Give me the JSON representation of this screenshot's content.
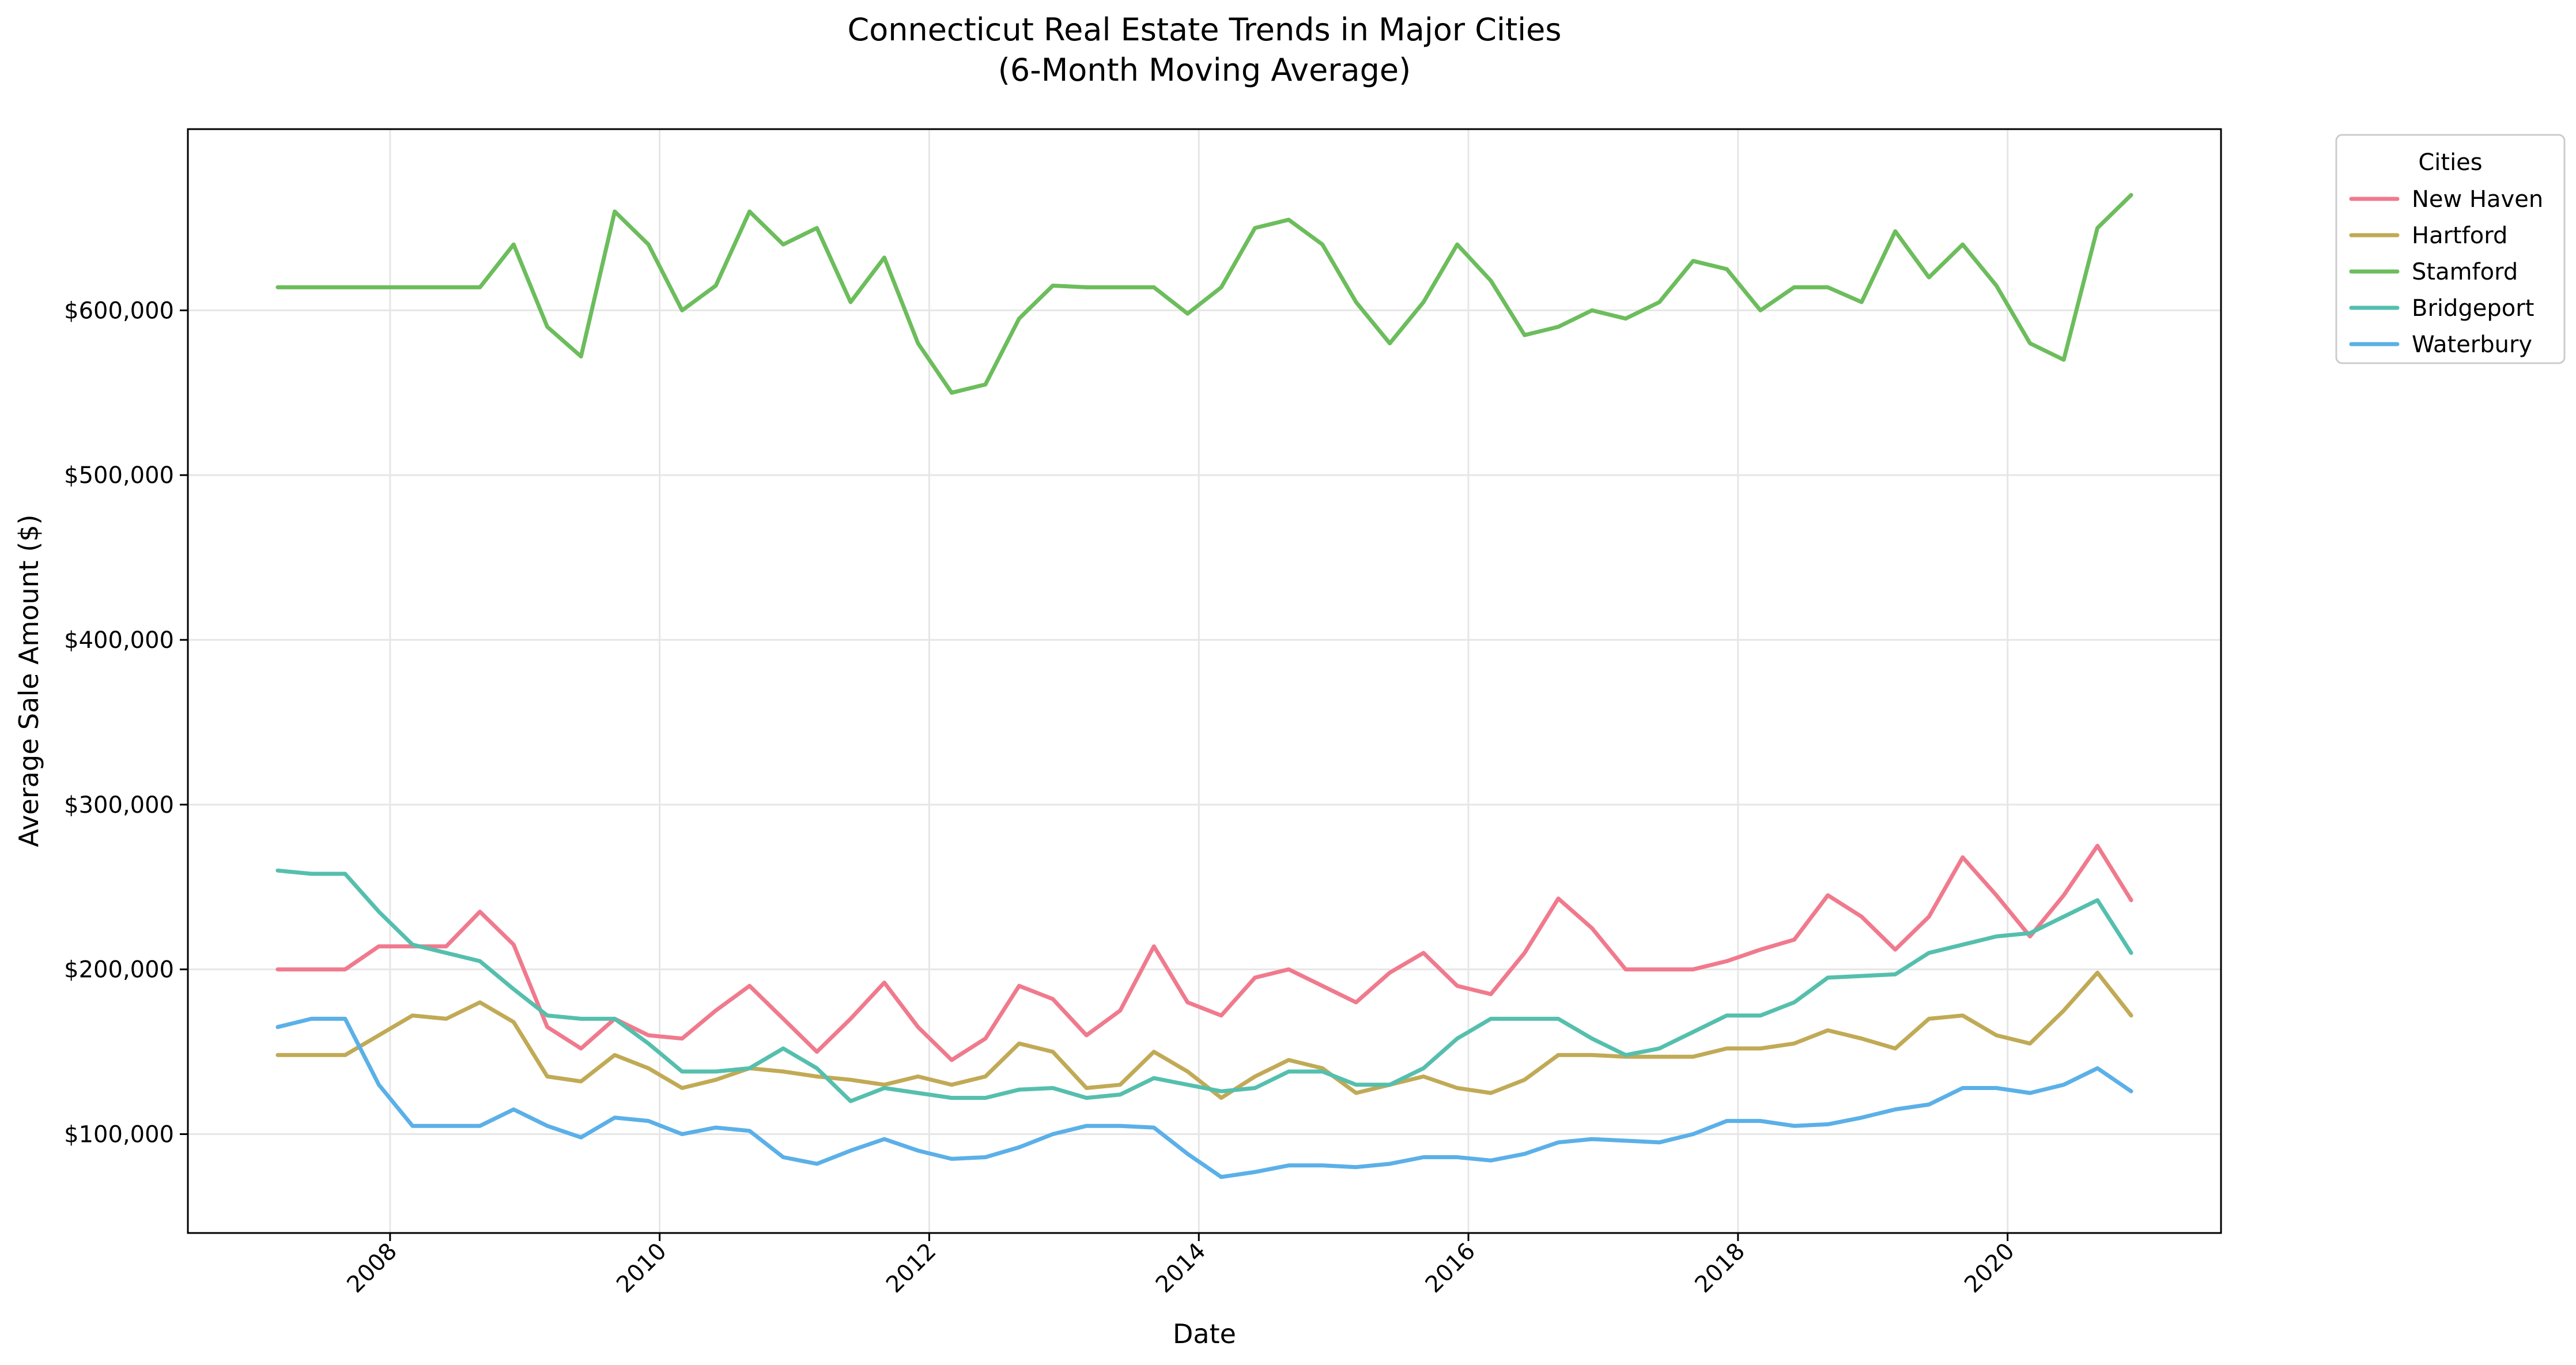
{
  "chart_data": {
    "type": "line",
    "title": "Connecticut Real Estate Trends in Major Cities",
    "subtitle": "(6-Month Moving Average)",
    "xlabel": "Date",
    "ylabel": "Average Sale Amount ($)",
    "x_ticks": [
      "2008",
      "2010",
      "2012",
      "2014",
      "2016",
      "2018",
      "2020"
    ],
    "y_ticks": [
      "$100,000",
      "$200,000",
      "$300,000",
      "$400,000",
      "$500,000",
      "$600,000"
    ],
    "y_tick_values": [
      100000,
      200000,
      300000,
      400000,
      500000,
      600000
    ],
    "xlim": [
      "2006-07",
      "2021-08"
    ],
    "ylim": [
      40000,
      710000
    ],
    "grid": true,
    "legend": {
      "title": "Cities",
      "placement": "outside top-right"
    },
    "colors": {
      "New Haven": "#f07a8d",
      "Hartford": "#c1aa56",
      "Stamford": "#6cbd5c",
      "Bridgeport": "#55bfad",
      "Waterbury": "#5bb0e8"
    },
    "series": [
      {
        "name": "New Haven",
        "x": [
          "2007-03",
          "2007-06",
          "2007-09",
          "2007-12",
          "2008-03",
          "2008-06",
          "2008-09",
          "2008-12",
          "2009-03",
          "2009-06",
          "2009-09",
          "2009-12",
          "2010-03",
          "2010-06",
          "2010-09",
          "2010-12",
          "2011-03",
          "2011-06",
          "2011-09",
          "2011-12",
          "2012-03",
          "2012-06",
          "2012-09",
          "2012-12",
          "2013-03",
          "2013-06",
          "2013-09",
          "2013-12",
          "2014-03",
          "2014-06",
          "2014-09",
          "2014-12",
          "2015-03",
          "2015-06",
          "2015-09",
          "2015-12",
          "2016-03",
          "2016-06",
          "2016-09",
          "2016-12",
          "2017-03",
          "2017-06",
          "2017-09",
          "2017-12",
          "2018-03",
          "2018-06",
          "2018-09",
          "2018-12",
          "2019-03",
          "2019-06",
          "2019-09",
          "2019-12",
          "2020-03",
          "2020-06",
          "2020-09",
          "2020-12"
        ],
        "values": [
          200000,
          200000,
          200000,
          214000,
          214000,
          214000,
          235000,
          215000,
          165000,
          152000,
          170000,
          160000,
          158000,
          175000,
          190000,
          170000,
          150000,
          170000,
          192000,
          165000,
          145000,
          158000,
          190000,
          182000,
          160000,
          175000,
          214000,
          180000,
          172000,
          195000,
          200000,
          190000,
          180000,
          198000,
          210000,
          190000,
          185000,
          210000,
          243000,
          225000,
          200000,
          200000,
          200000,
          205000,
          212000,
          218000,
          245000,
          232000,
          212000,
          232000,
          268000,
          245000,
          220000,
          245000,
          275000,
          242000
        ]
      },
      {
        "name": "Hartford",
        "x": [
          "2007-03",
          "2007-06",
          "2007-09",
          "2007-12",
          "2008-03",
          "2008-06",
          "2008-09",
          "2008-12",
          "2009-03",
          "2009-06",
          "2009-09",
          "2009-12",
          "2010-03",
          "2010-06",
          "2010-09",
          "2010-12",
          "2011-03",
          "2011-06",
          "2011-09",
          "2011-12",
          "2012-03",
          "2012-06",
          "2012-09",
          "2012-12",
          "2013-03",
          "2013-06",
          "2013-09",
          "2013-12",
          "2014-03",
          "2014-06",
          "2014-09",
          "2014-12",
          "2015-03",
          "2015-06",
          "2015-09",
          "2015-12",
          "2016-03",
          "2016-06",
          "2016-09",
          "2016-12",
          "2017-03",
          "2017-06",
          "2017-09",
          "2017-12",
          "2018-03",
          "2018-06",
          "2018-09",
          "2018-12",
          "2019-03",
          "2019-06",
          "2019-09",
          "2019-12",
          "2020-03",
          "2020-06",
          "2020-09",
          "2020-12"
        ],
        "values": [
          148000,
          148000,
          148000,
          160000,
          172000,
          170000,
          180000,
          168000,
          135000,
          132000,
          148000,
          140000,
          128000,
          133000,
          140000,
          138000,
          135000,
          133000,
          130000,
          135000,
          130000,
          135000,
          155000,
          150000,
          128000,
          130000,
          150000,
          138000,
          122000,
          135000,
          145000,
          140000,
          125000,
          130000,
          135000,
          128000,
          125000,
          133000,
          148000,
          148000,
          147000,
          147000,
          147000,
          152000,
          152000,
          155000,
          163000,
          158000,
          152000,
          170000,
          172000,
          160000,
          155000,
          175000,
          198000,
          172000
        ]
      },
      {
        "name": "Stamford",
        "x": [
          "2007-03",
          "2007-06",
          "2007-09",
          "2007-12",
          "2008-03",
          "2008-06",
          "2008-09",
          "2008-12",
          "2009-03",
          "2009-06",
          "2009-09",
          "2009-12",
          "2010-03",
          "2010-06",
          "2010-09",
          "2010-12",
          "2011-03",
          "2011-06",
          "2011-09",
          "2011-12",
          "2012-03",
          "2012-06",
          "2012-09",
          "2012-12",
          "2013-03",
          "2013-06",
          "2013-09",
          "2013-12",
          "2014-03",
          "2014-06",
          "2014-09",
          "2014-12",
          "2015-03",
          "2015-06",
          "2015-09",
          "2015-12",
          "2016-03",
          "2016-06",
          "2016-09",
          "2016-12",
          "2017-03",
          "2017-06",
          "2017-09",
          "2017-12",
          "2018-03",
          "2018-06",
          "2018-09",
          "2018-12",
          "2019-03",
          "2019-06",
          "2019-09",
          "2019-12",
          "2020-03",
          "2020-06",
          "2020-09",
          "2020-12"
        ],
        "values": [
          614000,
          614000,
          614000,
          614000,
          614000,
          614000,
          614000,
          640000,
          590000,
          572000,
          660000,
          640000,
          600000,
          615000,
          660000,
          640000,
          650000,
          605000,
          632000,
          580000,
          550000,
          555000,
          595000,
          615000,
          614000,
          614000,
          614000,
          598000,
          614000,
          650000,
          655000,
          640000,
          605000,
          580000,
          605000,
          640000,
          618000,
          585000,
          590000,
          600000,
          595000,
          605000,
          630000,
          625000,
          600000,
          614000,
          614000,
          605000,
          648000,
          620000,
          640000,
          615000,
          580000,
          570000,
          650000,
          670000
        ]
      },
      {
        "name": "Bridgeport",
        "x": [
          "2007-03",
          "2007-06",
          "2007-09",
          "2007-12",
          "2008-03",
          "2008-06",
          "2008-09",
          "2008-12",
          "2009-03",
          "2009-06",
          "2009-09",
          "2009-12",
          "2010-03",
          "2010-06",
          "2010-09",
          "2010-12",
          "2011-03",
          "2011-06",
          "2011-09",
          "2011-12",
          "2012-03",
          "2012-06",
          "2012-09",
          "2012-12",
          "2013-03",
          "2013-06",
          "2013-09",
          "2013-12",
          "2014-03",
          "2014-06",
          "2014-09",
          "2014-12",
          "2015-03",
          "2015-06",
          "2015-09",
          "2015-12",
          "2016-03",
          "2016-06",
          "2016-09",
          "2016-12",
          "2017-03",
          "2017-06",
          "2017-09",
          "2017-12",
          "2018-03",
          "2018-06",
          "2018-09",
          "2018-12",
          "2019-03",
          "2019-06",
          "2019-09",
          "2019-12",
          "2020-03",
          "2020-06",
          "2020-09",
          "2020-12"
        ],
        "values": [
          260000,
          258000,
          258000,
          235000,
          215000,
          210000,
          205000,
          188000,
          172000,
          170000,
          170000,
          155000,
          138000,
          138000,
          140000,
          152000,
          140000,
          120000,
          128000,
          125000,
          122000,
          122000,
          127000,
          128000,
          122000,
          124000,
          134000,
          130000,
          126000,
          128000,
          138000,
          138000,
          130000,
          130000,
          140000,
          158000,
          170000,
          170000,
          170000,
          158000,
          148000,
          152000,
          162000,
          172000,
          172000,
          180000,
          195000,
          196000,
          197000,
          210000,
          215000,
          220000,
          222000,
          232000,
          242000,
          210000
        ]
      },
      {
        "name": "Waterbury",
        "x": [
          "2007-03",
          "2007-06",
          "2007-09",
          "2007-12",
          "2008-03",
          "2008-06",
          "2008-09",
          "2008-12",
          "2009-03",
          "2009-06",
          "2009-09",
          "2009-12",
          "2010-03",
          "2010-06",
          "2010-09",
          "2010-12",
          "2011-03",
          "2011-06",
          "2011-09",
          "2011-12",
          "2012-03",
          "2012-06",
          "2012-09",
          "2012-12",
          "2013-03",
          "2013-06",
          "2013-09",
          "2013-12",
          "2014-03",
          "2014-06",
          "2014-09",
          "2014-12",
          "2015-03",
          "2015-06",
          "2015-09",
          "2015-12",
          "2016-03",
          "2016-06",
          "2016-09",
          "2016-12",
          "2017-03",
          "2017-06",
          "2017-09",
          "2017-12",
          "2018-03",
          "2018-06",
          "2018-09",
          "2018-12",
          "2019-03",
          "2019-06",
          "2019-09",
          "2019-12",
          "2020-03",
          "2020-06",
          "2020-09",
          "2020-12"
        ],
        "values": [
          165000,
          170000,
          170000,
          130000,
          105000,
          105000,
          105000,
          115000,
          105000,
          98000,
          110000,
          108000,
          100000,
          104000,
          102000,
          86000,
          82000,
          90000,
          97000,
          90000,
          85000,
          86000,
          92000,
          100000,
          105000,
          105000,
          104000,
          88000,
          74000,
          77000,
          81000,
          81000,
          80000,
          82000,
          86000,
          86000,
          84000,
          88000,
          95000,
          97000,
          96000,
          95000,
          100000,
          108000,
          108000,
          105000,
          106000,
          110000,
          115000,
          118000,
          128000,
          128000,
          125000,
          130000,
          140000,
          126000
        ]
      }
    ]
  }
}
